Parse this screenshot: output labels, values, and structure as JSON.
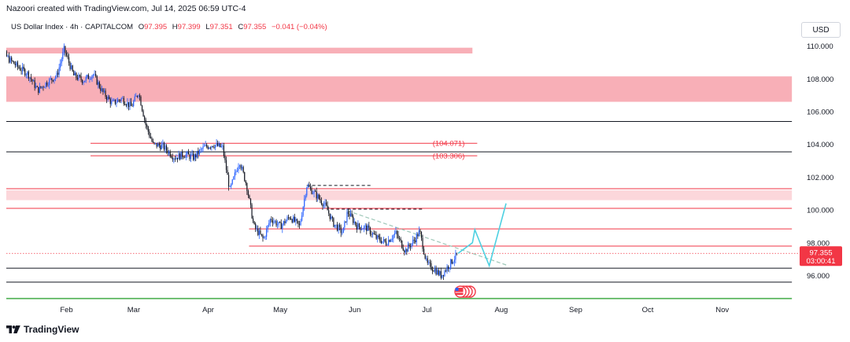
{
  "attribution": "Nazoori created with TradingView.com, Jul 14, 2025 06:59 UTC-4",
  "legend": {
    "symbol": "US Dollar Index · 4h · CAPITALCOM",
    "open_label": "O",
    "open_value": "97.395",
    "high_label": "H",
    "high_value": "97.399",
    "low_label": "L",
    "low_value": "97.351",
    "close_label": "C",
    "close_value": "97.355",
    "change": "−0.041 (−0.04%)"
  },
  "currency": "USD",
  "price_badge": {
    "price": "97.355",
    "countdown": "03:00:41"
  },
  "logo_text": "TradingView",
  "colors": {
    "up": "#2962ff",
    "down": "#131722",
    "zone": "#f7a1aa",
    "zone_light": "#fbd0d5",
    "line_red": "#f23645",
    "line_black": "#131722",
    "projection": "#4dd0e1",
    "green": "#4caf50",
    "badge": "#f23645"
  },
  "chart_data": {
    "type": "candlestick",
    "title": "US Dollar Index · 4h · CAPITALCOM",
    "ylim": [
      95.0,
      110.0
    ],
    "xlim": [
      "2025-01-01",
      "2025-11-30"
    ],
    "y_ticks": [
      "110.000",
      "108.000",
      "106.000",
      "104.000",
      "102.000",
      "100.000",
      "98.000",
      "96.000"
    ],
    "x_ticks": [
      "Feb",
      "Mar",
      "Apr",
      "May",
      "Jun",
      "Jul",
      "Aug",
      "Sep",
      "Oct",
      "Nov"
    ],
    "price_path": [
      [
        "2025-01-01",
        109.5
      ],
      [
        "2025-01-04",
        109.9
      ],
      [
        "2025-01-08",
        109.2
      ],
      [
        "2025-01-12",
        108.7
      ],
      [
        "2025-01-16",
        108.3
      ],
      [
        "2025-01-20",
        107.3
      ],
      [
        "2025-01-24",
        107.8
      ],
      [
        "2025-01-28",
        108.2
      ],
      [
        "2025-01-31",
        109.8
      ],
      [
        "2025-02-04",
        108.2
      ],
      [
        "2025-02-08",
        107.9
      ],
      [
        "2025-02-12",
        108.3
      ],
      [
        "2025-02-16",
        107.2
      ],
      [
        "2025-02-20",
        106.5
      ],
      [
        "2025-02-24",
        106.8
      ],
      [
        "2025-02-28",
        106.3
      ],
      [
        "2025-03-03",
        107.2
      ],
      [
        "2025-03-06",
        105.2
      ],
      [
        "2025-03-09",
        104.0
      ],
      [
        "2025-03-13",
        103.9
      ],
      [
        "2025-03-18",
        103.2
      ],
      [
        "2025-03-22",
        103.4
      ],
      [
        "2025-03-26",
        103.2
      ],
      [
        "2025-03-30",
        103.8
      ],
      [
        "2025-04-03",
        104.0
      ],
      [
        "2025-04-07",
        103.8
      ],
      [
        "2025-04-10",
        101.2
      ],
      [
        "2025-04-14",
        103.0
      ],
      [
        "2025-04-17",
        101.5
      ],
      [
        "2025-04-20",
        99.0
      ],
      [
        "2025-04-24",
        98.2
      ],
      [
        "2025-04-27",
        99.5
      ],
      [
        "2025-05-01",
        99.0
      ],
      [
        "2025-05-05",
        99.6
      ],
      [
        "2025-05-09",
        99.0
      ],
      [
        "2025-05-12",
        101.5
      ],
      [
        "2025-05-16",
        100.9
      ],
      [
        "2025-05-20",
        100.2
      ],
      [
        "2025-05-23",
        99.2
      ],
      [
        "2025-05-27",
        98.6
      ],
      [
        "2025-05-29",
        99.9
      ],
      [
        "2025-06-02",
        99.0
      ],
      [
        "2025-06-06",
        98.9
      ],
      [
        "2025-06-10",
        98.3
      ],
      [
        "2025-06-14",
        98.0
      ],
      [
        "2025-06-18",
        98.6
      ],
      [
        "2025-06-22",
        97.5
      ],
      [
        "2025-06-26",
        98.2
      ],
      [
        "2025-06-28",
        98.7
      ],
      [
        "2025-07-01",
        96.7
      ],
      [
        "2025-07-04",
        96.4
      ],
      [
        "2025-07-07",
        96.0
      ],
      [
        "2025-07-10",
        96.6
      ],
      [
        "2025-07-14",
        97.355
      ]
    ],
    "zones": [
      {
        "from": 109.55,
        "to": 109.9,
        "start": "2025-01-01",
        "end": "2025-07-20",
        "color": "zone"
      },
      {
        "from": 106.6,
        "to": 108.15,
        "start": "2025-01-01",
        "end": "2025-11-30",
        "color": "zone"
      },
      {
        "from": 100.6,
        "to": 101.2,
        "start": "2025-01-01",
        "end": "2025-11-30",
        "color": "zone_light"
      }
    ],
    "horizontal_lines": [
      {
        "price": 105.4,
        "start": "2025-01-01",
        "end": "2025-11-30",
        "color": "line_black"
      },
      {
        "price": 104.071,
        "start": "2025-02-11",
        "end": "2025-07-22",
        "color": "line_red",
        "label": "(104.071)"
      },
      {
        "price": 103.306,
        "start": "2025-02-11",
        "end": "2025-07-22",
        "color": "line_red",
        "label": "(103.306)"
      },
      {
        "price": 103.55,
        "start": "2025-01-01",
        "end": "2025-11-30",
        "color": "line_black"
      },
      {
        "price": 101.3,
        "start": "2025-01-01",
        "end": "2025-11-30",
        "color": "line_red"
      },
      {
        "price": 100.1,
        "start": "2025-01-01",
        "end": "2025-11-30",
        "color": "line_red"
      },
      {
        "price": 98.85,
        "start": "2025-04-18",
        "end": "2025-11-30",
        "color": "line_red"
      },
      {
        "price": 97.8,
        "start": "2025-04-18",
        "end": "2025-11-30",
        "color": "line_red"
      },
      {
        "price": 96.45,
        "start": "2025-01-01",
        "end": "2025-11-30",
        "color": "line_black"
      },
      {
        "price": 95.6,
        "start": "2025-01-01",
        "end": "2025-11-30",
        "color": "line_black"
      },
      {
        "price": 94.6,
        "start": "2025-01-01",
        "end": "2025-11-30",
        "color": "green"
      }
    ],
    "dashed_levels": [
      {
        "price": 101.5,
        "start": "2025-05-12",
        "end": "2025-06-08"
      },
      {
        "price": 100.05,
        "start": "2025-05-22",
        "end": "2025-06-30"
      }
    ],
    "trendline": {
      "start": [
        "2025-05-29",
        99.95
      ],
      "end": [
        "2025-08-04",
        96.6
      ]
    },
    "projection_path": [
      [
        "2025-07-14",
        97.355
      ],
      [
        "2025-07-20",
        98.0
      ],
      [
        "2025-07-21",
        98.8
      ],
      [
        "2025-07-27",
        96.6
      ],
      [
        "2025-08-03",
        100.4
      ]
    ]
  }
}
